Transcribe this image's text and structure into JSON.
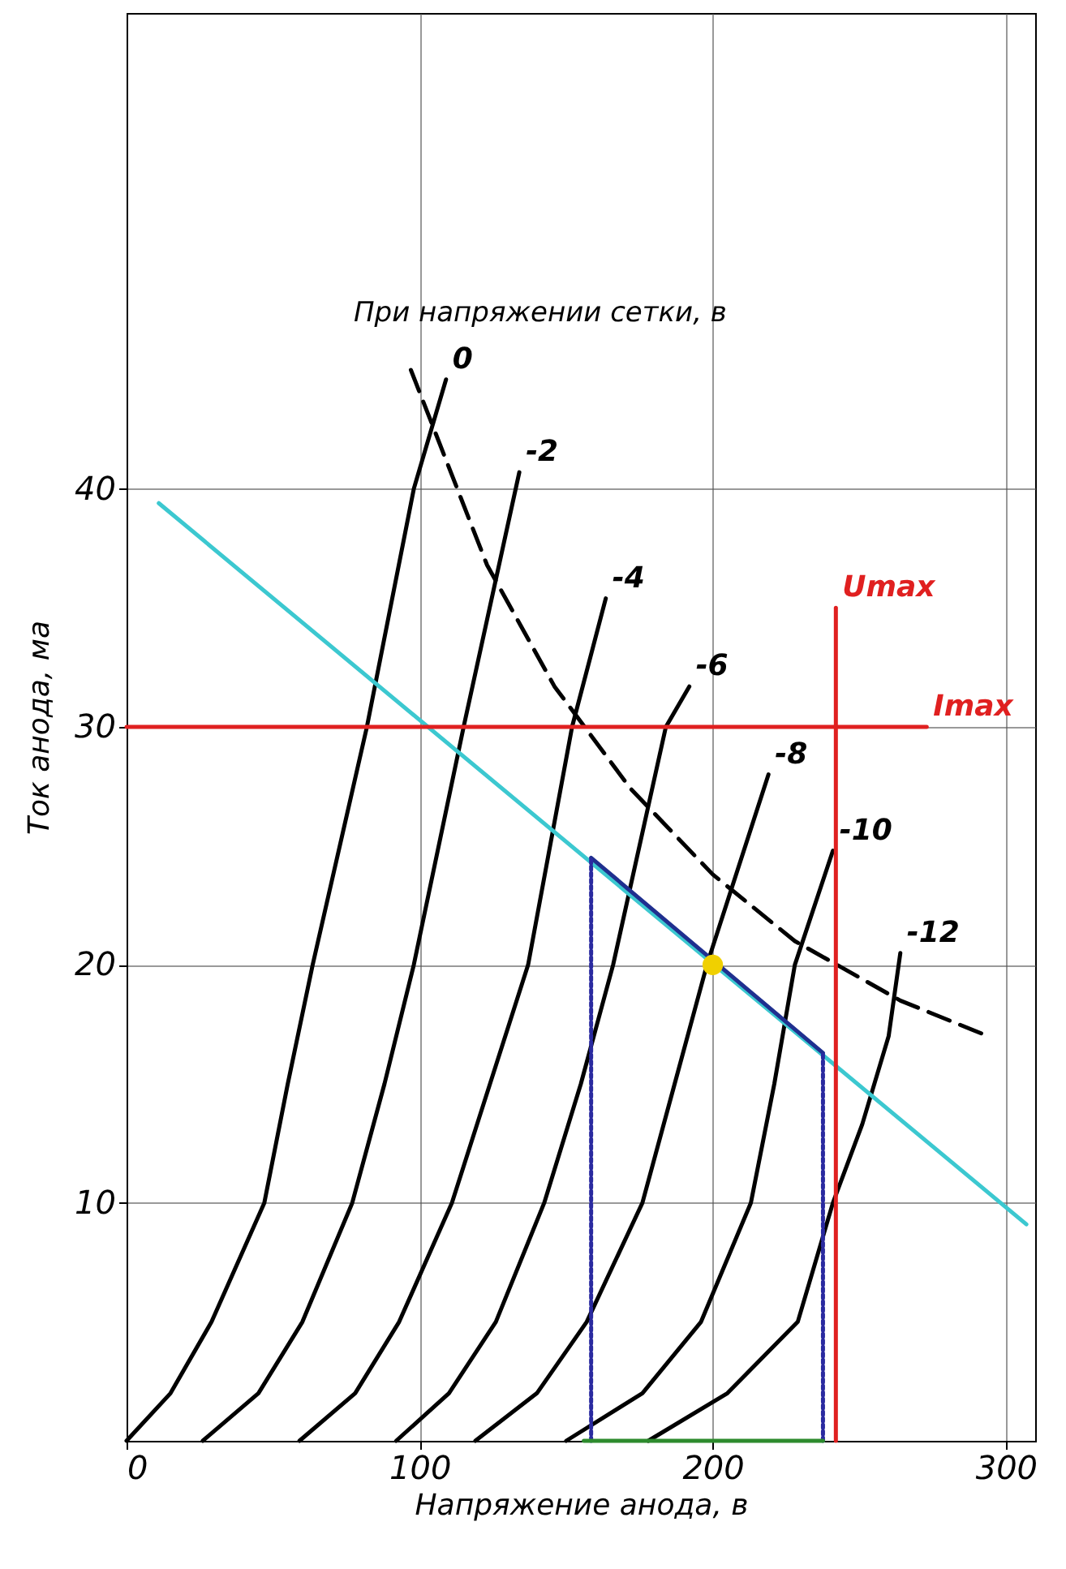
{
  "chart_data": {
    "type": "line",
    "xlabel": "Напряжение анода, в",
    "ylabel": "Ток анода, ма",
    "xlim": [
      0,
      310
    ],
    "ylim": [
      0,
      60
    ],
    "xticks": [
      0,
      100,
      200,
      300
    ],
    "yticks": [
      10,
      20,
      30,
      40
    ],
    "grid": true,
    "line_style": "solid",
    "annotations": [
      "При напряжении сетки, в"
    ],
    "series": [
      {
        "name": "0",
        "color": "#000000",
        "x": [
          0,
          15,
          29,
          47,
          55,
          63.5,
          82,
          98,
          109
        ],
        "values": [
          0,
          2,
          5,
          10,
          15,
          20,
          30,
          40,
          44.6
        ]
      },
      {
        "name": "-2",
        "color": "#000000",
        "x": [
          26,
          45,
          60,
          77,
          88,
          98,
          115,
          134
        ],
        "values": [
          0,
          2,
          5,
          10,
          15,
          20,
          30,
          40.7
        ]
      },
      {
        "name": "-4",
        "color": "#000000",
        "x": [
          59,
          78,
          93,
          111,
          124,
          137,
          152,
          163.5
        ],
        "values": [
          0,
          2,
          5,
          10,
          15,
          20,
          30,
          35.4
        ]
      },
      {
        "name": "-6",
        "color": "#000000",
        "x": [
          92,
          110,
          126,
          142.5,
          155,
          166,
          184,
          192
        ],
        "values": [
          0,
          2,
          5,
          10,
          15,
          20,
          30,
          31.7
        ]
      },
      {
        "name": "-8",
        "color": "#000000",
        "x": [
          119,
          140,
          157,
          176,
          187,
          198,
          219
        ],
        "values": [
          0,
          2,
          5,
          10,
          15,
          20,
          28
        ]
      },
      {
        "name": "-10",
        "color": "#000000",
        "x": [
          150,
          176,
          196,
          213,
          221,
          228,
          241
        ],
        "values": [
          0,
          2,
          5,
          10,
          15,
          20,
          24.8
        ]
      },
      {
        "name": "-12",
        "color": "#000000",
        "x": [
          178,
          205,
          229,
          241,
          251,
          260,
          264
        ],
        "values": [
          0,
          2,
          5,
          10,
          13.3,
          17,
          20.5
        ]
      },
      {
        "color": "#000000",
        "line_style": "dashed",
        "x": [
          97,
          123,
          146,
          172,
          200,
          228,
          264,
          294
        ],
        "values": [
          45,
          36.8,
          31.7,
          27.4,
          23.8,
          21,
          18.5,
          17
        ]
      },
      {
        "color": "#3cc8d0",
        "x": [
          11,
          307
        ],
        "values": [
          39.4,
          9.1
        ]
      },
      {
        "color": "#1f2f8f",
        "x": [
          158.5,
          237.6
        ],
        "values": [
          24.5,
          16.3
        ]
      },
      {
        "color": "#2a2aa0",
        "line_style": "dotted",
        "x": [
          158.5,
          158.5
        ],
        "values": [
          0,
          24.5
        ]
      },
      {
        "color": "#2a2aa0",
        "line_style": "dotted",
        "x": [
          237.6,
          237.6
        ],
        "values": [
          0,
          16.3
        ]
      },
      {
        "color": "#2e8b2e",
        "x": [
          156,
          237.6
        ],
        "values": [
          0,
          0
        ]
      },
      {
        "name": "Imax",
        "color": "#e02020",
        "x": [
          0,
          273
        ],
        "values": [
          30,
          30
        ]
      },
      {
        "name": "Umax",
        "color": "#e02020",
        "x": [
          242,
          242
        ],
        "values": [
          0,
          35
        ]
      },
      {
        "type": "scatter",
        "marker": "circle",
        "color": "#f0d000",
        "x": [
          200
        ],
        "values": [
          20
        ]
      }
    ]
  }
}
